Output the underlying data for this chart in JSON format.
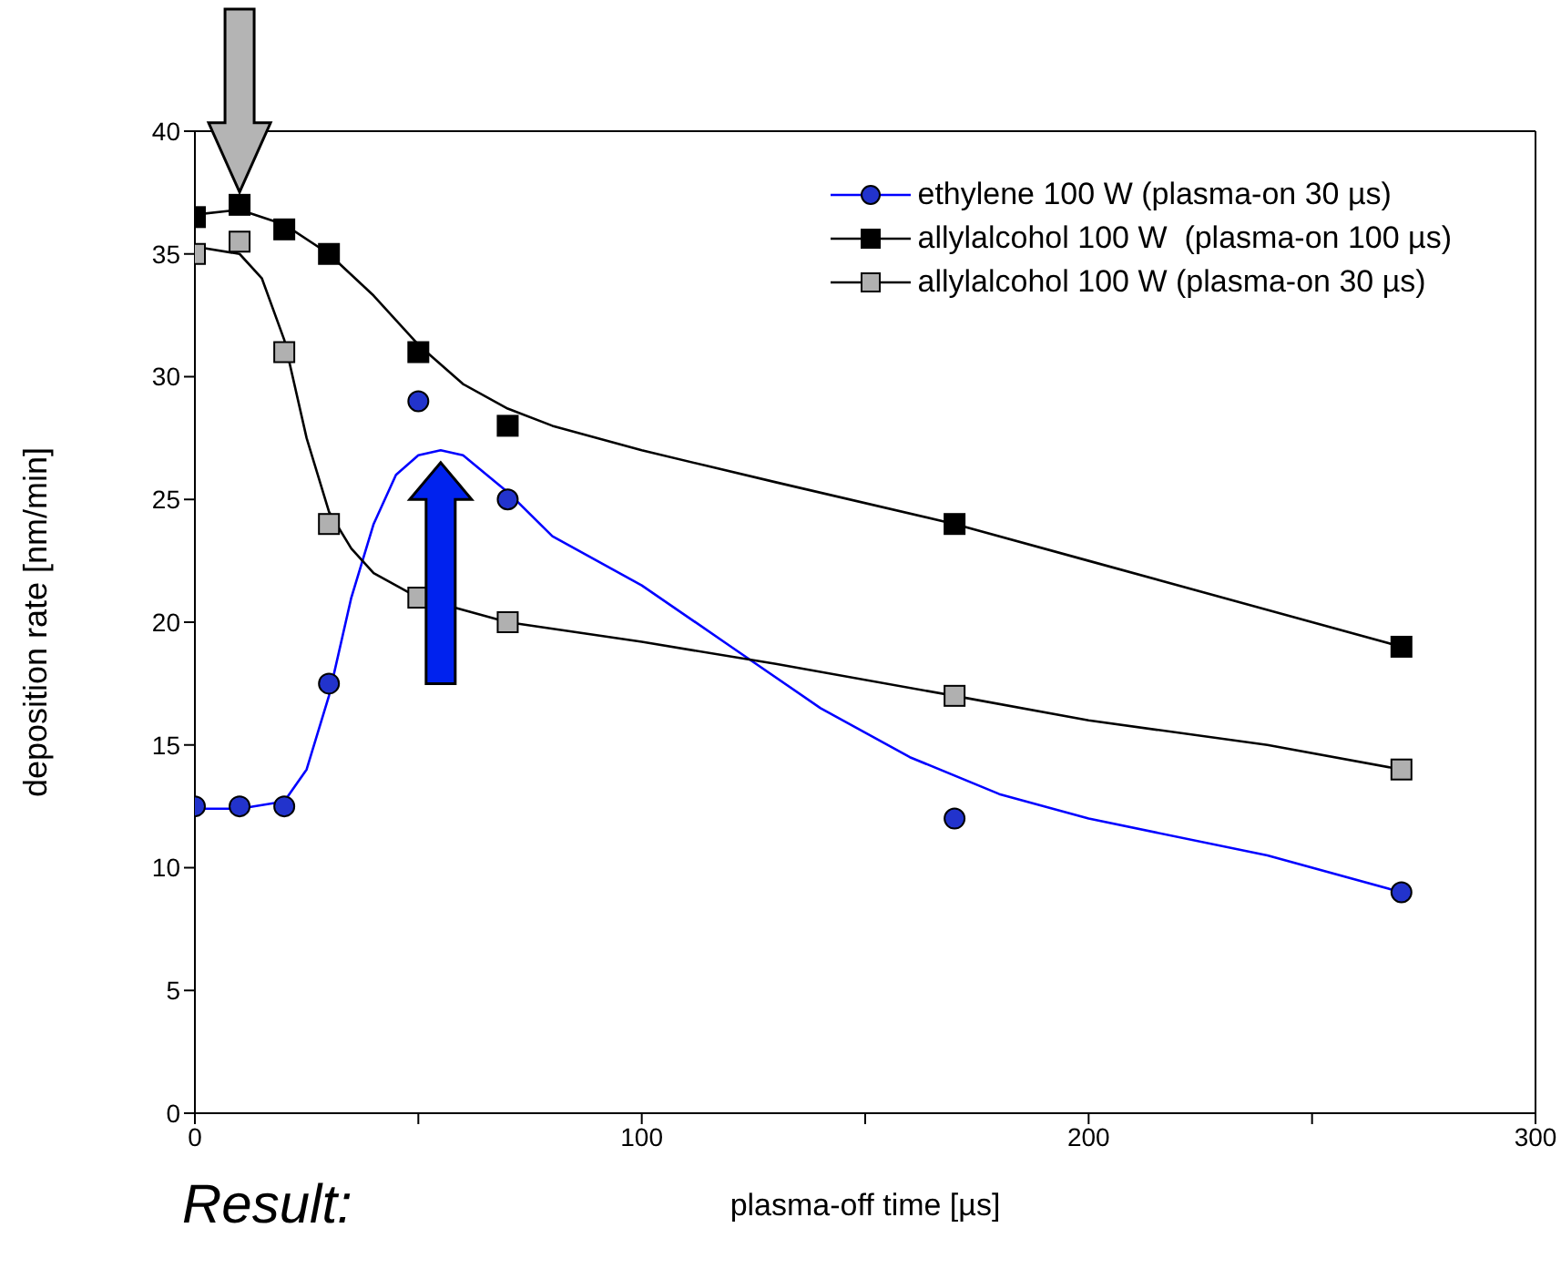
{
  "chart_data": {
    "type": "scatter",
    "xlabel": "plasma-off time [µs]",
    "ylabel": "deposition rate [nm/min]",
    "annotations": [
      "Result:"
    ],
    "xlim": [
      0,
      300
    ],
    "xticks": [
      0,
      {
        "value": 50,
        "label": null
      },
      100,
      {
        "value": 150,
        "label": null
      },
      200,
      {
        "value": 250,
        "label": null
      },
      300
    ],
    "ylim": [
      0,
      40
    ],
    "yticks": [
      0,
      5,
      10,
      15,
      20,
      25,
      30,
      35,
      40
    ],
    "grid": false,
    "legend": "top right",
    "series": [
      {
        "name": "ethylene 100 W (plasma-on 30 µs)",
        "color": "#2233cc",
        "marker": "circle",
        "x": [
          0,
          10,
          20,
          30,
          50,
          70,
          170,
          270
        ],
        "values": [
          12.5,
          12.5,
          12.5,
          17.5,
          29,
          25,
          12,
          9
        ]
      },
      {
        "name": "allylalcohol 100 W  (plasma-on 100 µs)",
        "color": "#000000",
        "marker": "square",
        "x": [
          0,
          10,
          20,
          30,
          50,
          70,
          170,
          270
        ],
        "values": [
          36.5,
          37,
          36,
          35,
          31,
          28,
          24,
          19
        ]
      },
      {
        "name": "allylalcohol 100 W (plasma-on 30 µs)",
        "color": "#b0b0b0",
        "marker": "square",
        "x": [
          0,
          10,
          20,
          30,
          50,
          70,
          170,
          270
        ],
        "values": [
          35,
          35.5,
          31,
          24,
          21,
          20,
          17,
          14
        ]
      },
      {
        "type": "line",
        "color": "#0000ff",
        "marker": "none",
        "x": [
          0,
          10,
          20,
          25,
          30,
          35,
          40,
          45,
          50,
          55,
          60,
          70,
          80,
          100,
          120,
          140,
          160,
          180,
          200,
          240,
          270
        ],
        "values": [
          12.4,
          12.4,
          12.7,
          14,
          17,
          21,
          24,
          26,
          26.8,
          27,
          26.8,
          25.3,
          23.5,
          21.5,
          19,
          16.5,
          14.5,
          13,
          12,
          10.5,
          9
        ]
      },
      {
        "type": "line",
        "color": "#000000",
        "marker": "none",
        "x": [
          0,
          10,
          20,
          30,
          40,
          50,
          60,
          70,
          80,
          100,
          130,
          170,
          200,
          240,
          270
        ],
        "values": [
          36.6,
          36.8,
          36.2,
          35,
          33.3,
          31.3,
          29.7,
          28.7,
          28,
          27,
          25.7,
          24,
          22.5,
          20.5,
          19
        ]
      },
      {
        "type": "line",
        "color": "#000000",
        "marker": "none",
        "x": [
          0,
          10,
          15,
          20,
          25,
          30,
          35,
          40,
          50,
          60,
          70,
          100,
          130,
          170,
          200,
          240,
          270
        ],
        "values": [
          35.3,
          35,
          34,
          31.5,
          27.5,
          24.5,
          23,
          22,
          21,
          20.5,
          20,
          19.2,
          18.3,
          17,
          16,
          15,
          14
        ]
      }
    ]
  }
}
